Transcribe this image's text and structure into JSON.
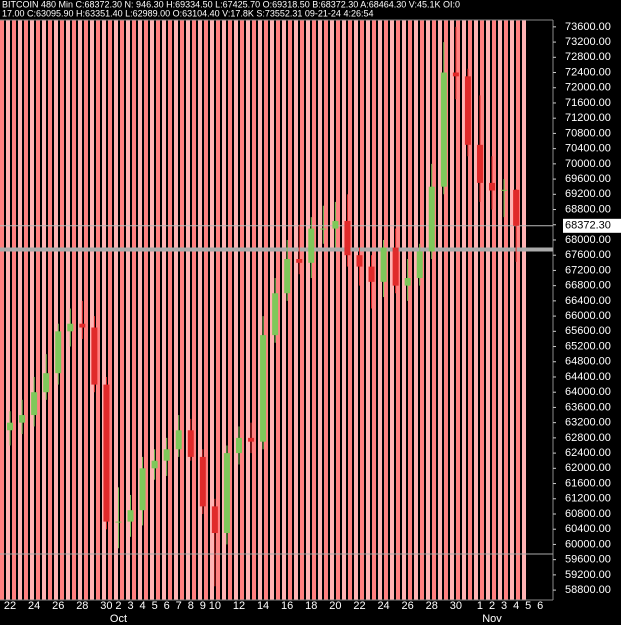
{
  "chart_data": {
    "type": "candlestick",
    "title": "BITCOIN  480 Min  C:68372.30  N:  946.30  H:69334.50  L:67425.70  O:69318.50  B:68372.30  A:68464.30  V:45.1K  OI:0",
    "subtitle": "17.00  C:63095.90  H:63351.40  L:62989.00  O:63104.40  V:17.8K  S:73552.31  09-21-24  4:26:54",
    "categories": [
      "22",
      null,
      "24",
      null,
      "26",
      null,
      "28",
      null,
      "30",
      "2",
      "3",
      "4",
      "5",
      "6",
      "7",
      "8",
      "9",
      "10",
      null,
      "12",
      null,
      "14",
      null,
      "16",
      null,
      "18",
      null,
      "20",
      null,
      "22",
      null,
      "24",
      null,
      "26",
      null,
      "28",
      null,
      "30",
      null,
      "1",
      "2",
      "3",
      "4",
      "5",
      "6",
      null
    ],
    "months": [
      {
        "index": 9,
        "label": "Oct"
      },
      {
        "index": 40,
        "label": "Nov"
      }
    ],
    "open": [
      63000,
      63200,
      63400,
      64000,
      64500,
      65600,
      65800,
      65700,
      64200,
      60600,
      60600,
      60900,
      62000,
      62200,
      62500,
      63000,
      62300,
      61000,
      60300,
      62400,
      62800,
      62700,
      65500,
      66600,
      67500,
      67400,
      68300,
      68300,
      68500,
      67600,
      67300,
      66900,
      67800,
      66800,
      67000,
      67700,
      69400,
      72400,
      72300,
      70500,
      69500,
      69300,
      69318.5,
      null,
      null,
      null
    ],
    "high": [
      63500,
      63800,
      64400,
      65000,
      65800,
      66200,
      66400,
      66000,
      64400,
      61500,
      61300,
      62300,
      62500,
      62800,
      63400,
      63300,
      62500,
      61200,
      62600,
      63100,
      63200,
      66000,
      67000,
      68000,
      68400,
      68600,
      68900,
      69000,
      69200,
      67800,
      67600,
      68000,
      68300,
      67500,
      67900,
      70000,
      73200,
      73600,
      72500,
      71800,
      70200,
      69600,
      69334.5,
      null,
      null,
      null
    ],
    "low": [
      62600,
      62900,
      63100,
      63800,
      64200,
      65200,
      65400,
      64000,
      60400,
      59900,
      60200,
      60500,
      61700,
      61800,
      62300,
      62200,
      60800,
      58900,
      60000,
      62100,
      62400,
      62500,
      65300,
      66400,
      67100,
      67000,
      67900,
      67800,
      67300,
      66800,
      66200,
      66500,
      66600,
      66400,
      66800,
      67500,
      69200,
      71700,
      70200,
      69000,
      68800,
      68600,
      67425.7,
      null,
      null,
      null
    ],
    "close": [
      63200,
      63400,
      64000,
      64500,
      65600,
      65800,
      65700,
      64200,
      60600,
      60600,
      60900,
      62000,
      62200,
      62500,
      63000,
      62300,
      61000,
      60300,
      62400,
      62800,
      62700,
      65500,
      66600,
      67500,
      67400,
      68300,
      68300,
      68500,
      67600,
      67300,
      66900,
      67800,
      66800,
      67000,
      67700,
      69400,
      72400,
      72300,
      70500,
      69500,
      69300,
      69318.5,
      68372.3,
      null,
      null,
      null
    ],
    "up_color": "#7ec85a",
    "down_color": "#e02a2a",
    "last_price": 68372.3,
    "last_price_label": "68372.30",
    "levels": [
      67750,
      59750
    ],
    "ylim": [
      58540,
      73780
    ],
    "yticks": [
      {
        "value": 58800,
        "label": "58800.00"
      },
      {
        "value": 59200,
        "label": "59200.00"
      },
      {
        "value": 59600,
        "label": "59600.00"
      },
      {
        "value": 60000,
        "label": "60000.00"
      },
      {
        "value": 60400,
        "label": "60400.00"
      },
      {
        "value": 60800,
        "label": "60800.00"
      },
      {
        "value": 61200,
        "label": "61200.00"
      },
      {
        "value": 61600,
        "label": "61600.00"
      },
      {
        "value": 62000,
        "label": "62000.00"
      },
      {
        "value": 62400,
        "label": "62400.00"
      },
      {
        "value": 62800,
        "label": "62800.00"
      },
      {
        "value": 63200,
        "label": "63200.00"
      },
      {
        "value": 63600,
        "label": "63600.00"
      },
      {
        "value": 64000,
        "label": "64000.00"
      },
      {
        "value": 64400,
        "label": "64400.00"
      },
      {
        "value": 64800,
        "label": "64800.00"
      },
      {
        "value": 65200,
        "label": "65200.00"
      },
      {
        "value": 65600,
        "label": "65600.00"
      },
      {
        "value": 66000,
        "label": "66000.00"
      },
      {
        "value": 66400,
        "label": "66400.00"
      },
      {
        "value": 66800,
        "label": "66800.00"
      },
      {
        "value": 67200,
        "label": "67200.00"
      },
      {
        "value": 67600,
        "label": "67600.00"
      },
      {
        "value": 68000,
        "label": "68000.00"
      },
      {
        "value": 68400,
        "label": "68400.00"
      },
      {
        "value": 68800,
        "label": "68800.00"
      },
      {
        "value": 69200,
        "label": "69200.00"
      },
      {
        "value": 69600,
        "label": "69600.00"
      },
      {
        "value": 70000,
        "label": "70000.00"
      },
      {
        "value": 70400,
        "label": "70400.00"
      },
      {
        "value": 70800,
        "label": "70800.00"
      },
      {
        "value": 71200,
        "label": "71200.00"
      },
      {
        "value": 71600,
        "label": "71600.00"
      },
      {
        "value": 72000,
        "label": "72000.00"
      },
      {
        "value": 72400,
        "label": "72400.00"
      },
      {
        "value": 72800,
        "label": "72800.00"
      },
      {
        "value": 73200,
        "label": "73200.00"
      },
      {
        "value": 73600,
        "label": "73600.00"
      }
    ]
  }
}
